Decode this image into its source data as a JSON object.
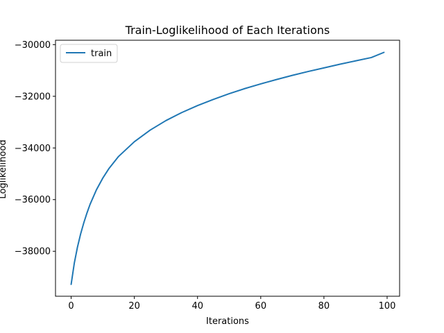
{
  "chart_data": {
    "type": "line",
    "title": "Train-Loglikelihood of Each Iterations",
    "xlabel": "Iterations",
    "ylabel": "Loglikelihood",
    "xlim": [
      -4.95,
      103.95
    ],
    "ylim": [
      -39740,
      -29830
    ],
    "xticks": [
      0,
      20,
      40,
      60,
      80,
      100
    ],
    "yticks": [
      -38000,
      -36000,
      -34000,
      -32000,
      -30000
    ],
    "xtick_labels": [
      "0",
      "20",
      "40",
      "60",
      "80",
      "100"
    ],
    "ytick_labels": [
      "−38000",
      "−36000",
      "−34000",
      "−32000",
      "−30000"
    ],
    "grid": false,
    "legend": {
      "position": "upper-left"
    },
    "series": [
      {
        "name": "train",
        "color": "#1f77b4",
        "x": [
          0,
          1,
          2,
          3,
          4,
          5,
          6,
          8,
          10,
          12,
          15,
          20,
          25,
          30,
          35,
          40,
          45,
          50,
          55,
          60,
          65,
          70,
          75,
          80,
          85,
          90,
          95,
          99
        ],
        "y": [
          -39280,
          -38460,
          -37840,
          -37330,
          -36900,
          -36520,
          -36180,
          -35620,
          -35170,
          -34790,
          -34330,
          -33760,
          -33310,
          -32940,
          -32630,
          -32360,
          -32120,
          -31900,
          -31700,
          -31520,
          -31350,
          -31190,
          -31040,
          -30900,
          -30760,
          -30630,
          -30500,
          -30300
        ]
      }
    ]
  }
}
